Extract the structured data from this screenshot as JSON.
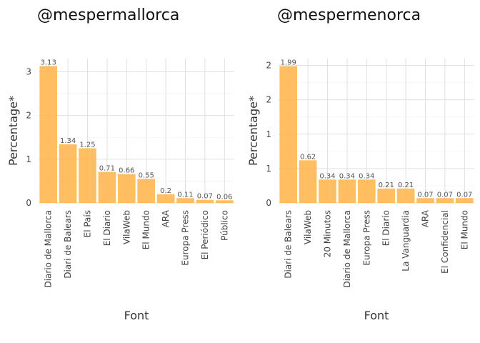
{
  "chart_data": [
    {
      "type": "bar",
      "title": "@mespermallorca",
      "xlabel": "Font",
      "ylabel": "Percentage*",
      "categories": [
        "Diario de Mallorca",
        "Diari de Balears",
        "El País",
        "El Diario",
        "VilaWeb",
        "El Mundo",
        "ARA",
        "Europa Press",
        "El Periódico",
        "Público"
      ],
      "values": [
        3.13,
        1.34,
        1.25,
        0.71,
        0.66,
        0.55,
        0.2,
        0.11,
        0.07,
        0.06
      ],
      "data_labels": [
        "3.13",
        "1.34",
        "1.25",
        "0.71",
        "0.66",
        "0.55",
        "0.2",
        "0.11",
        "0.07",
        "0.06"
      ],
      "yticks": [
        0,
        1,
        2,
        3
      ],
      "ytick_labels": [
        "0",
        "1",
        "2",
        "3"
      ],
      "ylim": [
        0,
        3.3
      ],
      "grid": true,
      "color": "#ffb347"
    },
    {
      "type": "bar",
      "title": "@mespermenorca",
      "xlabel": "Font",
      "ylabel": "Percentage*",
      "categories": [
        "Diari de Balears",
        "VilaWeb",
        "20 Minutos",
        "Diario de Mallorca",
        "Europa Press",
        "El Diario",
        "La Vanguardia",
        "ARA",
        "El Confidencial",
        "El Mundo"
      ],
      "values": [
        1.99,
        0.62,
        0.34,
        0.34,
        0.34,
        0.21,
        0.21,
        0.07,
        0.07,
        0.07
      ],
      "data_labels": [
        "1.99",
        "0.62",
        "0.34",
        "0.34",
        "0.34",
        "0.21",
        "0.21",
        "0.07",
        "0.07",
        "0.07"
      ],
      "yticks": [
        0,
        0.5,
        1,
        1.5,
        2
      ],
      "ytick_labels": [
        "0",
        "1",
        "1",
        "2",
        "2"
      ],
      "ylim": [
        0,
        2.1
      ],
      "grid": true,
      "color": "#ffb347"
    }
  ]
}
